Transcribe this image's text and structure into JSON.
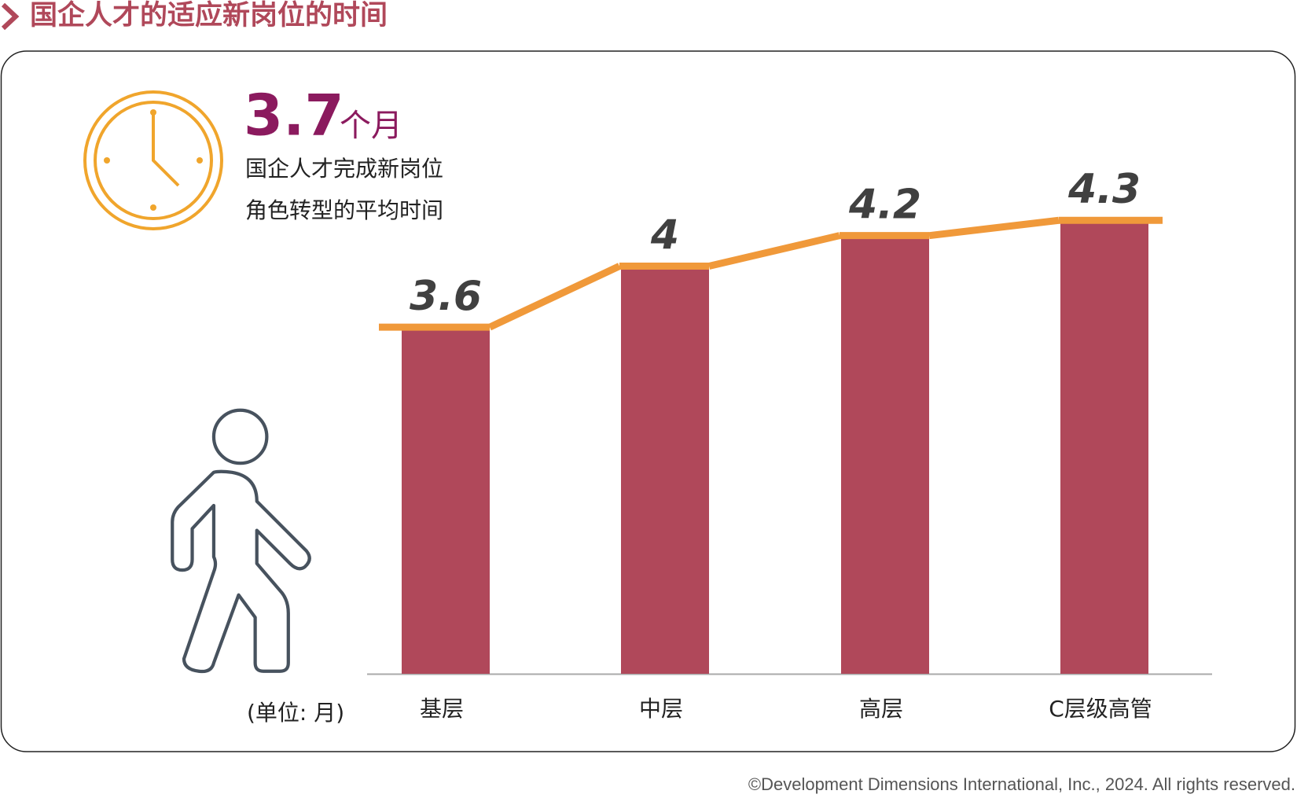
{
  "header": {
    "title": "国企人才的适应新岗位的时间"
  },
  "highlight": {
    "value": "3.7",
    "unit": "个月",
    "lines": [
      "国企人才完成新岗位",
      "角色转型的平均时间"
    ]
  },
  "unit_note": "(单位: 月)",
  "footer": "©Development Dimensions International, Inc., 2024. All rights reserved.",
  "chart_data": {
    "type": "bar",
    "categories": [
      "基层",
      "中层",
      "高层",
      "C层级高管"
    ],
    "values": [
      3.6,
      4.0,
      4.2,
      4.3
    ],
    "color": "#b0485a",
    "line_color": "#f0993a",
    "ylim": [
      1.35,
      4.6
    ]
  }
}
